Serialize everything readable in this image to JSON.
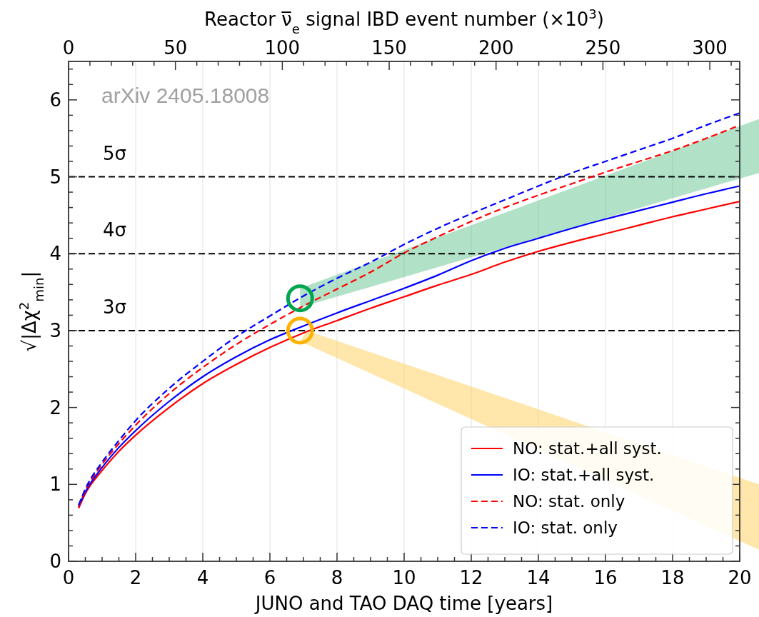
{
  "chart_data": {
    "type": "line",
    "xlabel": "JUNO and TAO DAQ time [years]",
    "ylabel": "√|Δχ$^{2}$$_{min}$|",
    "x2label": "Reactor ν̅$_{e}$ signal IBD event number (×10$^{3}$)",
    "annotations": [
      "arXiv 2405.18008"
    ],
    "x": [
      0.3,
      0.5,
      1,
      1.5,
      2,
      3,
      4,
      5,
      6,
      7,
      8,
      9,
      10,
      11,
      12,
      13,
      14,
      15,
      16,
      17,
      18,
      19,
      20
    ],
    "series": [
      {
        "name": "NO: stat.+all syst.",
        "color": "#ff0000",
        "line_style": "solid",
        "values": [
          0.69,
          0.88,
          1.18,
          1.43,
          1.64,
          2.0,
          2.31,
          2.56,
          2.78,
          2.97,
          3.13,
          3.29,
          3.44,
          3.59,
          3.73,
          3.89,
          4.03,
          4.15,
          4.26,
          4.37,
          4.48,
          4.58,
          4.68
        ]
      },
      {
        "name": "IO: stat.+all syst.",
        "color": "#0000ff",
        "line_style": "solid",
        "values": [
          0.71,
          0.9,
          1.22,
          1.48,
          1.7,
          2.08,
          2.4,
          2.66,
          2.88,
          3.06,
          3.23,
          3.39,
          3.55,
          3.72,
          3.91,
          4.07,
          4.2,
          4.33,
          4.45,
          4.56,
          4.67,
          4.78,
          4.88
        ]
      },
      {
        "name": "NO: stat. only",
        "color": "#ff0000",
        "line_style": "dashed",
        "values": [
          0.71,
          0.92,
          1.26,
          1.53,
          1.77,
          2.18,
          2.52,
          2.82,
          3.08,
          3.32,
          3.54,
          3.76,
          4.01,
          4.22,
          4.42,
          4.6,
          4.76,
          4.91,
          5.06,
          5.2,
          5.34,
          5.5,
          5.67
        ]
      },
      {
        "name": "IO: stat. only",
        "color": "#0000ff",
        "line_style": "dashed",
        "values": [
          0.73,
          0.94,
          1.29,
          1.57,
          1.83,
          2.25,
          2.6,
          2.92,
          3.19,
          3.45,
          3.68,
          3.89,
          4.12,
          4.33,
          4.52,
          4.7,
          4.88,
          5.05,
          5.2,
          5.35,
          5.5,
          5.67,
          5.83
        ]
      }
    ],
    "xlim": [
      0,
      20
    ],
    "ylim": [
      0,
      6.5
    ],
    "x2lim": [
      0,
      314
    ],
    "xticks": [
      0,
      {
        "value": 0.5,
        "label": null
      },
      {
        "value": 1,
        "label": null
      },
      {
        "value": 1.5,
        "label": null
      },
      2,
      {
        "value": 2.5,
        "label": null
      },
      {
        "value": 3,
        "label": null
      },
      {
        "value": 3.5,
        "label": null
      },
      4,
      {
        "value": 4.5,
        "label": null
      },
      {
        "value": 5,
        "label": null
      },
      {
        "value": 5.5,
        "label": null
      },
      6,
      {
        "value": 6.5,
        "label": null
      },
      {
        "value": 7,
        "label": null
      },
      {
        "value": 7.5,
        "label": null
      },
      8,
      {
        "value": 8.5,
        "label": null
      },
      {
        "value": 9,
        "label": null
      },
      {
        "value": 9.5,
        "label": null
      },
      10,
      {
        "value": 10.5,
        "label": null
      },
      {
        "value": 11,
        "label": null
      },
      {
        "value": 11.5,
        "label": null
      },
      12,
      {
        "value": 12.5,
        "label": null
      },
      {
        "value": 13,
        "label": null
      },
      {
        "value": 13.5,
        "label": null
      },
      14,
      {
        "value": 14.5,
        "label": null
      },
      {
        "value": 15,
        "label": null
      },
      {
        "value": 15.5,
        "label": null
      },
      16,
      {
        "value": 16.5,
        "label": null
      },
      {
        "value": 17,
        "label": null
      },
      {
        "value": 17.5,
        "label": null
      },
      18,
      {
        "value": 18.5,
        "label": null
      },
      {
        "value": 19,
        "label": null
      },
      {
        "value": 19.5,
        "label": null
      },
      20
    ],
    "yticks": [
      0,
      {
        "value": 0.2,
        "label": null
      },
      {
        "value": 0.4,
        "label": null
      },
      {
        "value": 0.6,
        "label": null
      },
      {
        "value": 0.8,
        "label": null
      },
      1,
      {
        "value": 1.2,
        "label": null
      },
      {
        "value": 1.4,
        "label": null
      },
      {
        "value": 1.6,
        "label": null
      },
      {
        "value": 1.8,
        "label": null
      },
      2,
      {
        "value": 2.2,
        "label": null
      },
      {
        "value": 2.4,
        "label": null
      },
      {
        "value": 2.6,
        "label": null
      },
      {
        "value": 2.8,
        "label": null
      },
      3,
      {
        "value": 3.2,
        "label": null
      },
      {
        "value": 3.4,
        "label": null
      },
      {
        "value": 3.6,
        "label": null
      },
      {
        "value": 3.8,
        "label": null
      },
      4,
      {
        "value": 4.2,
        "label": null
      },
      {
        "value": 4.4,
        "label": null
      },
      {
        "value": 4.6,
        "label": null
      },
      {
        "value": 4.8,
        "label": null
      },
      5,
      {
        "value": 5.2,
        "label": null
      },
      {
        "value": 5.4,
        "label": null
      },
      {
        "value": 5.6,
        "label": null
      },
      {
        "value": 5.8,
        "label": null
      },
      6,
      {
        "value": 6.2,
        "label": null
      },
      {
        "value": 6.4,
        "label": null
      }
    ],
    "x2ticks": [
      0,
      {
        "value": 10,
        "label": null
      },
      {
        "value": 20,
        "label": null
      },
      {
        "value": 30,
        "label": null
      },
      {
        "value": 40,
        "label": null
      },
      50,
      {
        "value": 60,
        "label": null
      },
      {
        "value": 70,
        "label": null
      },
      {
        "value": 80,
        "label": null
      },
      {
        "value": 90,
        "label": null
      },
      100,
      {
        "value": 110,
        "label": null
      },
      {
        "value": 120,
        "label": null
      },
      {
        "value": 130,
        "label": null
      },
      {
        "value": 140,
        "label": null
      },
      150,
      {
        "value": 160,
        "label": null
      },
      {
        "value": 170,
        "label": null
      },
      {
        "value": 180,
        "label": null
      },
      {
        "value": 190,
        "label": null
      },
      200,
      {
        "value": 210,
        "label": null
      },
      {
        "value": 220,
        "label": null
      },
      {
        "value": 230,
        "label": null
      },
      {
        "value": 240,
        "label": null
      },
      250,
      {
        "value": 260,
        "label": null
      },
      {
        "value": 270,
        "label": null
      },
      {
        "value": 280,
        "label": null
      },
      {
        "value": 290,
        "label": null
      },
      300,
      {
        "value": 310,
        "label": null
      }
    ],
    "ref_lines": [
      {
        "axis": "y",
        "value": 3,
        "label": "3σ",
        "color": "#000000",
        "line_style": "dashed"
      },
      {
        "axis": "y",
        "value": 4,
        "label": "4σ",
        "color": "#000000",
        "line_style": "dashed"
      },
      {
        "axis": "y",
        "value": 5,
        "label": "5σ",
        "color": "#000000",
        "line_style": "dashed"
      }
    ],
    "grid": "x",
    "legend": "bottom right"
  }
}
